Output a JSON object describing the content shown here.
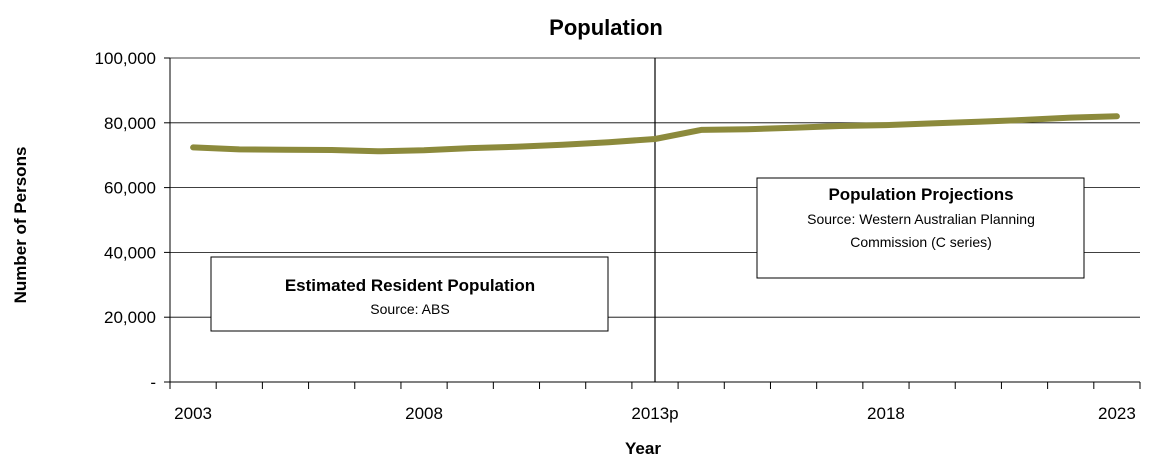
{
  "chart_data": {
    "type": "line",
    "title": "Population",
    "xlabel": "Year",
    "ylabel": "Number of Persons",
    "ylim": [
      0,
      100000
    ],
    "y_ticks": [
      {
        "value": 0,
        "label": "-"
      },
      {
        "value": 20000,
        "label": "20,000"
      },
      {
        "value": 40000,
        "label": "40,000"
      },
      {
        "value": 60000,
        "label": "60,000"
      },
      {
        "value": 80000,
        "label": "80,000"
      },
      {
        "value": 100000,
        "label": "100,000"
      }
    ],
    "x": [
      2003,
      2004,
      2005,
      2006,
      2007,
      2008,
      2009,
      2010,
      2011,
      2012,
      2013,
      2014,
      2015,
      2016,
      2017,
      2018,
      2019,
      2020,
      2021,
      2022,
      2023
    ],
    "x_tick_labels": [
      {
        "year": 2003,
        "label": "2003"
      },
      {
        "year": 2008,
        "label": "2008"
      },
      {
        "year": 2013,
        "label": "2013p"
      },
      {
        "year": 2018,
        "label": "2018"
      },
      {
        "year": 2023,
        "label": "2023"
      }
    ],
    "series": [
      {
        "color": "#8c8a3c",
        "values": [
          72400,
          71800,
          71700,
          71600,
          71200,
          71500,
          72200,
          72600,
          73200,
          74000,
          75000,
          77800,
          78000,
          78500,
          79000,
          79300,
          79800,
          80300,
          80900,
          81600,
          82000
        ]
      }
    ],
    "divider_year": 2013,
    "grid": true,
    "annotations": [
      {
        "title": "Estimated Resident Population",
        "lines": [
          "Source: ABS"
        ]
      },
      {
        "title": "Population Projections",
        "lines": [
          "Source: Western Australian Planning",
          "Commission (C series)"
        ]
      }
    ]
  }
}
